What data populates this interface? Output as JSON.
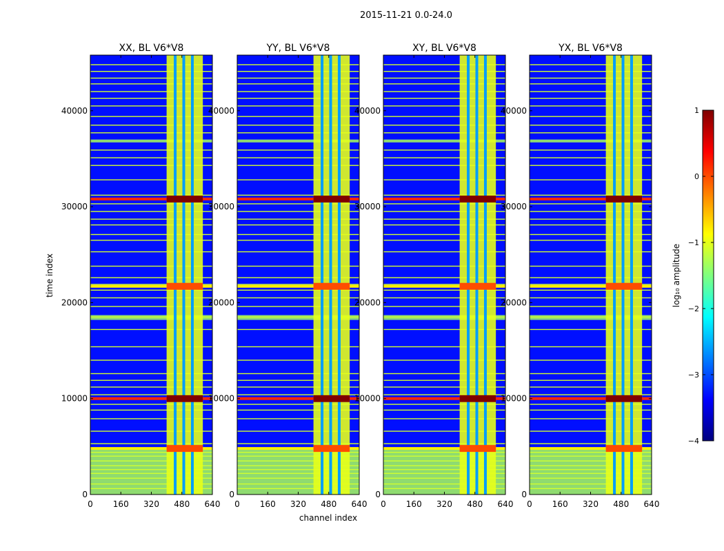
{
  "figure": {
    "suptitle": "2015-11-21 0.0-24.0",
    "xlabel": "channel index",
    "ylabel": "time index"
  },
  "chart_data": {
    "type": "heatmap",
    "panels": [
      {
        "title": "XX, BL V6*V8"
      },
      {
        "title": "YY, BL V6*V8"
      },
      {
        "title": "XY, BL V6*V8"
      },
      {
        "title": "YX, BL V6*V8"
      }
    ],
    "xlim": [
      0,
      640
    ],
    "ylim": [
      0,
      45800
    ],
    "xticks": [
      0,
      160,
      320,
      480,
      640
    ],
    "yticks": [
      0,
      10000,
      20000,
      30000,
      40000
    ],
    "colorbar": {
      "label": "log₁₀ amplitude",
      "range": [
        -4,
        1
      ],
      "ticks": [
        1,
        0,
        -1,
        -2,
        -3,
        -4
      ],
      "tick_labels": [
        "1",
        "0",
        "−1",
        "−2",
        "−3",
        "−4"
      ],
      "colors": [
        "#00007f",
        "#0000ff",
        "#007fff",
        "#00ffff",
        "#7fff7f",
        "#ffff00",
        "#ff7f00",
        "#ff0000",
        "#7f0000"
      ]
    },
    "rfi_channel_band": [
      400,
      590
    ],
    "rfi_channel_gaps": [
      445,
      490,
      535
    ],
    "background_level": -3.3,
    "band_level": -1.0,
    "flagged_time_ranges": [
      [
        0,
        4700
      ],
      [
        36700,
        37000
      ],
      [
        18200,
        18700
      ]
    ],
    "strong_rfi_times": [
      {
        "t": 10000,
        "level": 1.0
      },
      {
        "t": 30800,
        "level": 1.0
      },
      {
        "t": 21700,
        "level": 0.0
      },
      {
        "t": 4800,
        "level": 0.0
      }
    ],
    "horizontal_line_times": [
      620,
      1100,
      1700,
      2200,
      2600,
      3000,
      3500,
      4000,
      4400,
      5300,
      6600,
      7900,
      8800,
      9400,
      10400,
      11200,
      11900,
      12600,
      14000,
      15400,
      17200,
      18500,
      19600,
      20500,
      21300,
      21900,
      22600,
      23800,
      25300,
      26500,
      27100,
      28100,
      28700,
      29500,
      30300,
      31200,
      32800,
      34300,
      35100,
      35900,
      37700,
      38500,
      39400,
      40500,
      41300,
      42000,
      42800,
      43400,
      44100,
      44800
    ]
  }
}
